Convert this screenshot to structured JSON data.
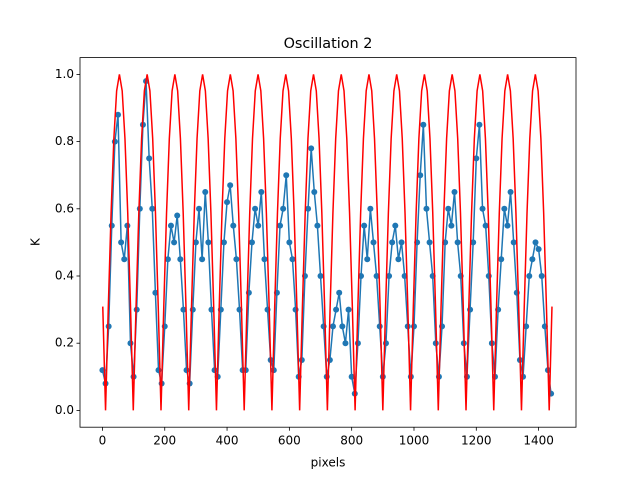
{
  "chart_data": {
    "type": "line",
    "title": "Oscillation 2",
    "x_label": "pixels",
    "y_label": "K",
    "xlim": [
      -72,
      1520
    ],
    "ylim": [
      -0.05,
      1.05
    ],
    "xticks": [
      0,
      200,
      400,
      600,
      800,
      1000,
      1200,
      1400
    ],
    "yticks": [
      {
        "value": 0,
        "label": "0.0"
      },
      {
        "value": 0.2,
        "label": "0.2"
      },
      {
        "value": 0.4,
        "label": "0.4"
      },
      {
        "value": 0.6,
        "label": "0.6"
      },
      {
        "value": 0.8,
        "label": "0.8"
      },
      {
        "value": 1,
        "label": "1.0"
      }
    ],
    "series": [
      {
        "color": "#1f77b4",
        "markers": true,
        "x": [
          0,
          10,
          20,
          30,
          40,
          50,
          60,
          70,
          80,
          90,
          100,
          110,
          120,
          130,
          140,
          150,
          160,
          170,
          180,
          190,
          200,
          210,
          220,
          230,
          240,
          250,
          260,
          270,
          280,
          290,
          300,
          310,
          320,
          330,
          340,
          350,
          360,
          370,
          380,
          390,
          400,
          410,
          420,
          430,
          440,
          450,
          460,
          470,
          480,
          490,
          500,
          510,
          520,
          530,
          540,
          550,
          560,
          570,
          580,
          590,
          600,
          610,
          620,
          630,
          640,
          650,
          660,
          670,
          680,
          690,
          700,
          710,
          720,
          730,
          740,
          750,
          760,
          770,
          780,
          790,
          800,
          810,
          820,
          830,
          840,
          850,
          860,
          870,
          880,
          890,
          900,
          910,
          920,
          930,
          940,
          950,
          960,
          970,
          980,
          990,
          1000,
          1010,
          1020,
          1030,
          1040,
          1050,
          1060,
          1070,
          1080,
          1090,
          1100,
          1110,
          1120,
          1130,
          1140,
          1150,
          1160,
          1170,
          1180,
          1190,
          1200,
          1210,
          1220,
          1230,
          1240,
          1250,
          1260,
          1270,
          1280,
          1290,
          1300,
          1310,
          1320,
          1330,
          1340,
          1350,
          1360,
          1370,
          1380,
          1390,
          1400,
          1410,
          1420,
          1430,
          1440
        ],
        "values": [
          0.12,
          0.08,
          0.25,
          0.55,
          0.8,
          0.88,
          0.5,
          0.45,
          0.55,
          0.2,
          0.1,
          0.3,
          0.6,
          0.85,
          0.98,
          0.75,
          0.6,
          0.35,
          0.12,
          0.08,
          0.25,
          0.45,
          0.55,
          0.5,
          0.58,
          0.45,
          0.3,
          0.12,
          0.08,
          0.3,
          0.5,
          0.6,
          0.45,
          0.65,
          0.5,
          0.3,
          0.12,
          0.1,
          0.3,
          0.5,
          0.62,
          0.67,
          0.55,
          0.45,
          0.3,
          0.12,
          0.12,
          0.35,
          0.5,
          0.6,
          0.55,
          0.65,
          0.45,
          0.3,
          0.15,
          0.12,
          0.35,
          0.55,
          0.6,
          0.7,
          0.5,
          0.45,
          0.3,
          0.1,
          0.15,
          0.4,
          0.6,
          0.78,
          0.65,
          0.55,
          0.4,
          0.25,
          0.1,
          0.15,
          0.25,
          0.3,
          0.35,
          0.25,
          0.2,
          0.3,
          0.1,
          0.05,
          0.2,
          0.4,
          0.55,
          0.45,
          0.6,
          0.5,
          0.4,
          0.25,
          0.1,
          0.2,
          0.4,
          0.5,
          0.55,
          0.45,
          0.5,
          0.4,
          0.25,
          0.1,
          0.25,
          0.5,
          0.7,
          0.85,
          0.6,
          0.5,
          0.4,
          0.2,
          0.1,
          0.25,
          0.5,
          0.6,
          0.55,
          0.65,
          0.5,
          0.4,
          0.2,
          0.1,
          0.3,
          0.5,
          0.75,
          0.85,
          0.6,
          0.55,
          0.4,
          0.2,
          0.1,
          0.3,
          0.45,
          0.6,
          0.55,
          0.65,
          0.5,
          0.35,
          0.15,
          0.1,
          0.25,
          0.4,
          0.45,
          0.5,
          0.48,
          0.4,
          0.25,
          0.12,
          0.05
        ]
      },
      {
        "color": "#ff0000",
        "markers": false,
        "x": [
          1.1,
          10,
          18.9,
          27.8,
          36.7,
          45.6,
          54.5,
          63.4,
          72.3,
          81.2,
          90.1,
          99,
          107.9,
          116.8,
          125.7,
          134.6,
          143.5,
          152.4,
          161.3,
          170.2,
          179.1,
          188,
          196.9,
          205.8,
          214.7,
          223.6,
          232.5,
          241.4,
          250.3,
          259.2,
          268.1,
          277,
          285.9,
          294.8,
          303.7,
          312.6,
          321.5,
          330.4,
          339.3,
          348.2,
          357.1,
          366,
          374.9,
          383.8,
          392.7,
          401.6,
          410.5,
          419.4,
          428.3,
          437.2,
          446.1,
          455,
          463.9,
          472.8,
          481.7,
          490.6,
          499.5,
          508.4,
          517.3,
          526.2,
          535.1,
          544,
          552.9,
          561.8,
          570.7,
          579.6,
          588.5,
          597.4,
          606.3,
          615.2,
          624.1,
          633,
          641.9,
          650.8,
          659.7,
          668.6,
          677.5,
          686.4,
          695.3,
          704.2,
          713.1,
          722,
          730.9,
          739.8,
          748.7,
          757.6,
          766.5,
          775.4,
          784.3,
          793.2,
          802.1,
          811,
          819.9,
          828.8,
          837.7,
          846.6,
          855.5,
          864.4,
          873.3,
          882.2,
          891.1,
          900,
          908.9,
          917.8,
          926.7,
          935.6,
          944.5,
          953.4,
          962.3,
          971.2,
          980.1,
          989,
          997.9,
          1006.8,
          1015.7,
          1024.6,
          1033.5,
          1042.4,
          1051.3,
          1060.2,
          1069.1,
          1078,
          1086.9,
          1095.8,
          1104.7,
          1113.6,
          1122.5,
          1131.4,
          1140.3,
          1149.2,
          1158.1,
          1167,
          1175.9,
          1184.8,
          1193.7,
          1202.6,
          1211.5,
          1220.4,
          1229.3,
          1238.2,
          1247.1,
          1256,
          1264.9,
          1273.8,
          1282.7,
          1291.6,
          1300.5,
          1309.4,
          1318.3,
          1327.2,
          1336.1,
          1345,
          1353.9,
          1362.8,
          1371.7,
          1380.6,
          1389.5,
          1398.4,
          1407.3,
          1416.2,
          1425.1,
          1434,
          1442.9
        ],
        "values": [
          0.309,
          0,
          0.309,
          0.588,
          0.809,
          0.951,
          1,
          0.951,
          0.809,
          0.588,
          0.309,
          0,
          0.309,
          0.588,
          0.809,
          0.951,
          1,
          0.951,
          0.809,
          0.588,
          0.309,
          0,
          0.309,
          0.588,
          0.809,
          0.951,
          1,
          0.951,
          0.809,
          0.588,
          0.309,
          0,
          0.309,
          0.588,
          0.809,
          0.951,
          1,
          0.951,
          0.809,
          0.588,
          0.309,
          0,
          0.309,
          0.588,
          0.809,
          0.951,
          1,
          0.951,
          0.809,
          0.588,
          0.309,
          0,
          0.309,
          0.588,
          0.809,
          0.951,
          1,
          0.951,
          0.809,
          0.588,
          0.309,
          0,
          0.309,
          0.588,
          0.809,
          0.951,
          1,
          0.951,
          0.809,
          0.588,
          0.309,
          0,
          0.309,
          0.588,
          0.809,
          0.951,
          1,
          0.951,
          0.809,
          0.588,
          0.309,
          0,
          0.309,
          0.588,
          0.809,
          0.951,
          1,
          0.951,
          0.809,
          0.588,
          0.309,
          0,
          0.309,
          0.588,
          0.809,
          0.951,
          1,
          0.951,
          0.809,
          0.588,
          0.309,
          0,
          0.309,
          0.588,
          0.809,
          0.951,
          1,
          0.951,
          0.809,
          0.588,
          0.309,
          0,
          0.309,
          0.588,
          0.809,
          0.951,
          1,
          0.951,
          0.809,
          0.588,
          0.309,
          0,
          0.309,
          0.588,
          0.809,
          0.951,
          1,
          0.951,
          0.809,
          0.588,
          0.309,
          0,
          0.309,
          0.588,
          0.809,
          0.951,
          1,
          0.951,
          0.809,
          0.588,
          0.309,
          0,
          0.309,
          0.588,
          0.809,
          0.951,
          1,
          0.951,
          0.809,
          0.588,
          0.309,
          0,
          0.309,
          0.588,
          0.809,
          0.951,
          1,
          0.951,
          0.809,
          0.588,
          0.309,
          0,
          0.309
        ]
      }
    ]
  }
}
